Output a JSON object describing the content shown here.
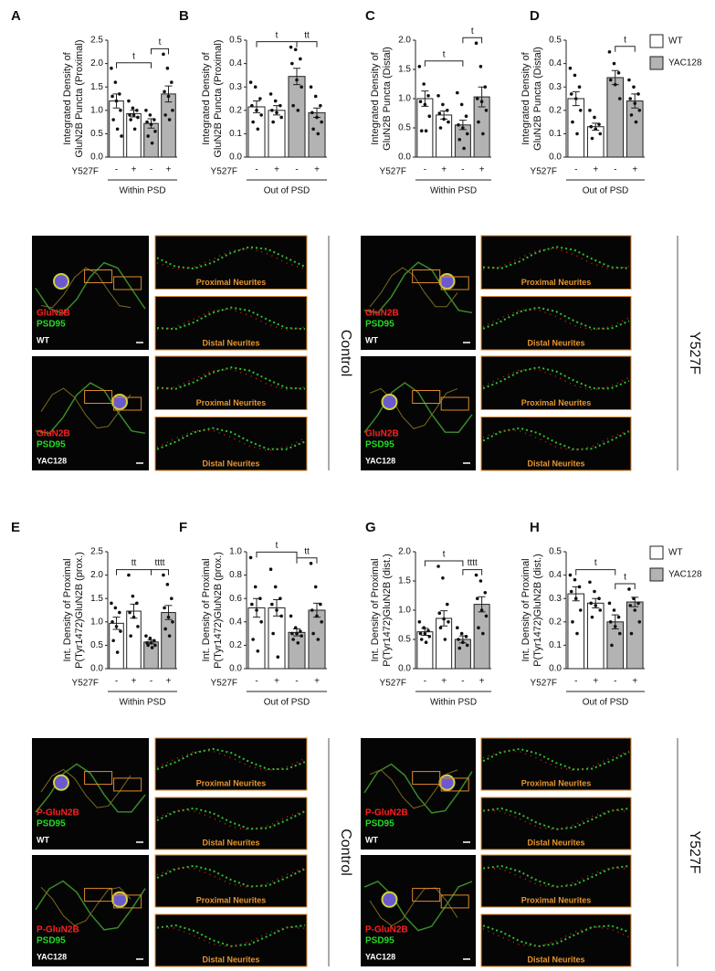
{
  "chart_data": [
    {
      "type": "bar",
      "label": "A",
      "ylabel": [
        "Integrated Density of",
        "GluN2B Puncta (Proximal)"
      ],
      "ylim": [
        0,
        2.5
      ],
      "yticks": [
        {
          "value": 0,
          "label": "0.0"
        },
        0.5,
        {
          "value": 1,
          "label": "1.0"
        },
        1.5,
        {
          "value": 2,
          "label": "2.0"
        },
        2.5
      ],
      "categories": [
        "-",
        "+",
        "-",
        "+"
      ],
      "xlabel": "Y527F",
      "group_label": "Within PSD",
      "colors": [
        "#ffffff",
        "#ffffff",
        "#b3b3b3",
        "#b3b3b3"
      ],
      "values": [
        1.2,
        0.93,
        0.72,
        1.35
      ],
      "errors": [
        0.15,
        0.07,
        0.1,
        0.17
      ],
      "points": [
        [
          1.9,
          1.6,
          1.35,
          1.3,
          1.2,
          1.0,
          0.8,
          0.6,
          0.45
        ],
        [
          1.2,
          1.05,
          1.0,
          0.9,
          0.9,
          0.85,
          0.8,
          0.6
        ],
        [
          1.0,
          0.9,
          0.8,
          0.75,
          0.7,
          0.55,
          0.45,
          0.3
        ],
        [
          2.2,
          1.9,
          1.6,
          1.4,
          1.3,
          1.0,
          0.9,
          0.8
        ]
      ],
      "significance": [
        {
          "label": "t",
          "bars": [
            0,
            2
          ]
        },
        {
          "label": "t",
          "bars": [
            2,
            3
          ]
        }
      ]
    },
    {
      "type": "bar",
      "label": "B",
      "ylabel": [
        "Integrated Density of",
        "GluN2B Puncta (Proximal)"
      ],
      "ylim": [
        0,
        0.5
      ],
      "yticks": [
        {
          "value": 0,
          "label": "0.0"
        },
        0.1,
        0.2,
        0.3,
        0.4,
        0.5
      ],
      "categories": [
        "-",
        "+",
        "-",
        "+"
      ],
      "xlabel": "Y527F",
      "group_label": "Out of PSD",
      "colors": [
        "#ffffff",
        "#ffffff",
        "#b3b3b3",
        "#b3b3b3"
      ],
      "values": [
        0.215,
        0.2,
        0.345,
        0.19
      ],
      "errors": [
        0.025,
        0.02,
        0.035,
        0.02
      ],
      "points": [
        [
          0.32,
          0.3,
          0.25,
          0.22,
          0.2,
          0.18,
          0.15,
          0.12
        ],
        [
          0.27,
          0.24,
          0.22,
          0.2,
          0.19,
          0.17,
          0.15
        ],
        [
          0.47,
          0.46,
          0.42,
          0.4,
          0.33,
          0.3,
          0.22,
          0.2
        ],
        [
          0.3,
          0.26,
          0.22,
          0.19,
          0.17,
          0.15,
          0.12,
          0.1
        ]
      ],
      "significance": [
        {
          "label": "t",
          "bars": [
            0,
            2
          ]
        },
        {
          "label": "tt",
          "bars": [
            2,
            3
          ]
        }
      ]
    },
    {
      "type": "bar",
      "label": "C",
      "ylabel": [
        "Integrated Density of",
        "GluN2B Puncta (Distal)"
      ],
      "ylim": [
        0,
        2.0
      ],
      "yticks": [
        {
          "value": 0,
          "label": "0.0"
        },
        0.5,
        {
          "value": 1,
          "label": "1.0"
        },
        1.5,
        {
          "value": 2,
          "label": "2.0"
        }
      ],
      "categories": [
        "-",
        "+",
        "-",
        "+"
      ],
      "xlabel": "Y527F",
      "group_label": "Within PSD",
      "colors": [
        "#ffffff",
        "#ffffff",
        "#b3b3b3",
        "#b3b3b3"
      ],
      "values": [
        1.0,
        0.72,
        0.55,
        1.03
      ],
      "errors": [
        0.13,
        0.07,
        0.08,
        0.17
      ],
      "points": [
        [
          1.55,
          1.25,
          1.05,
          0.95,
          0.9,
          0.7,
          0.45,
          0.45
        ],
        [
          1.05,
          0.9,
          0.8,
          0.75,
          0.65,
          0.6,
          0.5
        ],
        [
          1.1,
          0.9,
          0.7,
          0.55,
          0.5,
          0.4,
          0.3,
          0.15
        ],
        [
          1.95,
          1.55,
          1.2,
          1.0,
          0.95,
          0.8,
          0.6,
          0.4
        ]
      ],
      "significance": [
        {
          "label": "t",
          "bars": [
            0,
            2
          ]
        },
        {
          "label": "t",
          "bars": [
            2,
            3
          ]
        }
      ]
    },
    {
      "type": "bar",
      "label": "D",
      "ylabel": [
        "Integrated Density of",
        "GluN2B Puncta (Distal)"
      ],
      "ylim": [
        0,
        0.5
      ],
      "yticks": [
        {
          "value": 0,
          "label": "0.0"
        },
        0.1,
        0.2,
        0.3,
        0.4,
        0.5
      ],
      "categories": [
        "-",
        "+",
        "-",
        "+"
      ],
      "xlabel": "Y527F",
      "group_label": "Out of PSD",
      "colors": [
        "#ffffff",
        "#ffffff",
        "#b3b3b3",
        "#b3b3b3"
      ],
      "values": [
        0.25,
        0.13,
        0.34,
        0.24
      ],
      "errors": [
        0.03,
        0.015,
        0.03,
        0.03
      ],
      "points": [
        [
          0.38,
          0.35,
          0.3,
          0.27,
          0.25,
          0.2,
          0.15,
          0.1
        ],
        [
          0.2,
          0.17,
          0.14,
          0.13,
          0.12,
          0.1,
          0.08
        ],
        [
          0.45,
          0.4,
          0.36,
          0.33,
          0.31,
          0.25
        ],
        [
          0.33,
          0.3,
          0.27,
          0.25,
          0.23,
          0.2,
          0.18,
          0.15
        ]
      ],
      "significance": [
        {
          "label": "t",
          "bars": [
            2,
            3
          ]
        }
      ],
      "legend": [
        {
          "name": "WT",
          "color": "#ffffff"
        },
        {
          "name": "YAC128",
          "color": "#b3b3b3"
        }
      ]
    },
    {
      "type": "bar",
      "label": "E",
      "ylabel": [
        "Int. Density of Proximal",
        "P(Tyr1472)GluN2B (prox.)"
      ],
      "ylim": [
        0,
        2.5
      ],
      "yticks": [
        {
          "value": 0,
          "label": "0.0"
        },
        0.5,
        {
          "value": 1,
          "label": "1.0"
        },
        1.5,
        {
          "value": 2,
          "label": "2.0"
        },
        2.5
      ],
      "categories": [
        "-",
        "+",
        "-",
        "+"
      ],
      "xlabel": "Y527F",
      "group_label": "Within PSD",
      "colors": [
        "#ffffff",
        "#ffffff",
        "#b3b3b3",
        "#b3b3b3"
      ],
      "values": [
        0.97,
        1.23,
        0.57,
        1.2
      ],
      "errors": [
        0.13,
        0.15,
        0.04,
        0.15
      ],
      "points": [
        [
          1.4,
          1.3,
          1.2,
          1.0,
          0.9,
          0.8,
          0.6,
          0.35
        ],
        [
          2.0,
          1.55,
          1.4,
          1.2,
          1.1,
          0.9,
          0.7
        ],
        [
          0.7,
          0.65,
          0.6,
          0.55,
          0.55,
          0.5,
          0.5,
          0.45
        ],
        [
          2.0,
          1.8,
          1.5,
          1.3,
          1.1,
          1.0,
          0.85,
          0.7
        ]
      ],
      "significance": [
        {
          "label": "tt",
          "bars": [
            0,
            2
          ]
        },
        {
          "label": "tttt",
          "bars": [
            2,
            3
          ]
        }
      ]
    },
    {
      "type": "bar",
      "label": "F",
      "ylabel": [
        "Int. Density of Proximal",
        "P(Tyr1472)GluN2B (prox.)"
      ],
      "ylim": [
        0,
        1.0
      ],
      "yticks": [
        {
          "value": 0,
          "label": "0.0"
        },
        0.2,
        0.4,
        0.6,
        0.8,
        {
          "value": 1,
          "label": "1.0"
        }
      ],
      "categories": [
        "-",
        "+",
        "-",
        "+"
      ],
      "xlabel": "Y527F",
      "group_label": "Out of PSD",
      "colors": [
        "#ffffff",
        "#ffffff",
        "#b3b3b3",
        "#b3b3b3"
      ],
      "values": [
        0.52,
        0.52,
        0.31,
        0.5
      ],
      "errors": [
        0.08,
        0.07,
        0.03,
        0.06
      ],
      "points": [
        [
          0.95,
          0.7,
          0.6,
          0.55,
          0.5,
          0.4,
          0.25,
          0.15
        ],
        [
          0.85,
          0.7,
          0.6,
          0.55,
          0.5,
          0.45,
          0.3,
          0.1
        ],
        [
          0.45,
          0.35,
          0.32,
          0.3,
          0.3,
          0.28,
          0.25,
          0.22
        ],
        [
          0.9,
          0.7,
          0.55,
          0.5,
          0.45,
          0.4,
          0.3,
          0.25
        ]
      ],
      "significance": [
        {
          "label": "t",
          "bars": [
            0,
            2
          ]
        },
        {
          "label": "tt",
          "bars": [
            2,
            3
          ]
        }
      ]
    },
    {
      "type": "bar",
      "label": "G",
      "ylabel": [
        "Int. Density of Proximal",
        "P(Tyr1472)GluN2B (dist.)"
      ],
      "ylim": [
        0,
        2.0
      ],
      "yticks": [
        {
          "value": 0,
          "label": "0.0"
        },
        0.5,
        {
          "value": 1,
          "label": "1.0"
        },
        1.5,
        {
          "value": 2,
          "label": "2.0"
        }
      ],
      "categories": [
        "-",
        "+",
        "-",
        "+"
      ],
      "xlabel": "Y527F",
      "group_label": "Within PSD",
      "colors": [
        "#ffffff",
        "#ffffff",
        "#b3b3b3",
        "#b3b3b3"
      ],
      "values": [
        0.63,
        0.86,
        0.5,
        1.1
      ],
      "errors": [
        0.06,
        0.13,
        0.06,
        0.13
      ],
      "points": [
        [
          0.8,
          0.7,
          0.65,
          0.6,
          0.6,
          0.55,
          0.5,
          0.45
        ],
        [
          1.75,
          1.55,
          1.1,
          0.95,
          0.85,
          0.8,
          0.7,
          0.5
        ],
        [
          0.7,
          0.6,
          0.55,
          0.5,
          0.45,
          0.4,
          0.35
        ],
        [
          1.6,
          1.5,
          1.3,
          1.2,
          1.0,
          0.9,
          0.7,
          0.6
        ]
      ],
      "significance": [
        {
          "label": "t",
          "bars": [
            0,
            2
          ]
        },
        {
          "label": "tttt",
          "bars": [
            2,
            3
          ]
        }
      ]
    },
    {
      "type": "bar",
      "label": "H",
      "ylabel": [
        "Int. Density of Proximal",
        "P(Tyr1472)GluN2B (dist.)"
      ],
      "ylim": [
        0,
        0.5
      ],
      "yticks": [
        {
          "value": 0,
          "label": "0.0"
        },
        0.1,
        0.2,
        0.3,
        0.4,
        0.5
      ],
      "categories": [
        "-",
        "+",
        "-",
        "+"
      ],
      "xlabel": "Y527F",
      "group_label": "Out of PSD",
      "colors": [
        "#ffffff",
        "#ffffff",
        "#b3b3b3",
        "#b3b3b3"
      ],
      "values": [
        0.32,
        0.28,
        0.2,
        0.285
      ],
      "errors": [
        0.03,
        0.02,
        0.03,
        0.02
      ],
      "points": [
        [
          0.4,
          0.38,
          0.35,
          0.33,
          0.3,
          0.25,
          0.2,
          0.15
        ],
        [
          0.37,
          0.33,
          0.3,
          0.28,
          0.27,
          0.25,
          0.22
        ],
        [
          0.28,
          0.25,
          0.22,
          0.2,
          0.18,
          0.15,
          0.1
        ],
        [
          0.34,
          0.3,
          0.28,
          0.27,
          0.25,
          0.2,
          0.15
        ]
      ],
      "significance": [
        {
          "label": "t",
          "bars": [
            0,
            2
          ]
        },
        {
          "label": "t",
          "bars": [
            2,
            3
          ]
        }
      ],
      "legend": [
        {
          "name": "WT",
          "color": "#ffffff"
        },
        {
          "name": "YAC128",
          "color": "#b3b3b3"
        }
      ]
    }
  ],
  "micrograph_panels": [
    {
      "condition": "Control",
      "rows": [
        {
          "genotype": "WT",
          "stains": [
            "GluN2B",
            "PSD95"
          ],
          "insets": [
            "Proximal Neurites",
            "Distal Neurites"
          ]
        },
        {
          "genotype": "YAC128",
          "stains": [
            "GluN2B",
            "PSD95"
          ],
          "insets": [
            "Proximal Neurites",
            "Distal Neurites"
          ]
        }
      ]
    },
    {
      "condition": "Y527F",
      "rows": [
        {
          "genotype": "WT",
          "stains": [
            "GluN2B",
            "PSD95"
          ],
          "insets": [
            "Proximal Neurites",
            "Distal Neurites"
          ]
        },
        {
          "genotype": "YAC128",
          "stains": [
            "GluN2B",
            "PSD95"
          ],
          "insets": [
            "Proximal Neurites",
            "Distal Neurites"
          ]
        }
      ]
    },
    {
      "condition": "Control",
      "rows": [
        {
          "genotype": "WT",
          "stains": [
            "P-GluN2B",
            "PSD95"
          ],
          "insets": [
            "Proximal Neurites",
            "Distal Neurites"
          ]
        },
        {
          "genotype": "YAC128",
          "stains": [
            "P-GluN2B",
            "PSD95"
          ],
          "insets": [
            "Proximal Neurites",
            "Distal Neurites"
          ]
        }
      ]
    },
    {
      "condition": "Y527F",
      "rows": [
        {
          "genotype": "WT",
          "stains": [
            "P-GluN2B",
            "PSD95"
          ],
          "insets": [
            "Proximal Neurites",
            "Distal Neurites"
          ]
        },
        {
          "genotype": "YAC128",
          "stains": [
            "P-GluN2B",
            "PSD95"
          ],
          "insets": [
            "Proximal Neurites",
            "Distal Neurites"
          ]
        }
      ]
    }
  ]
}
